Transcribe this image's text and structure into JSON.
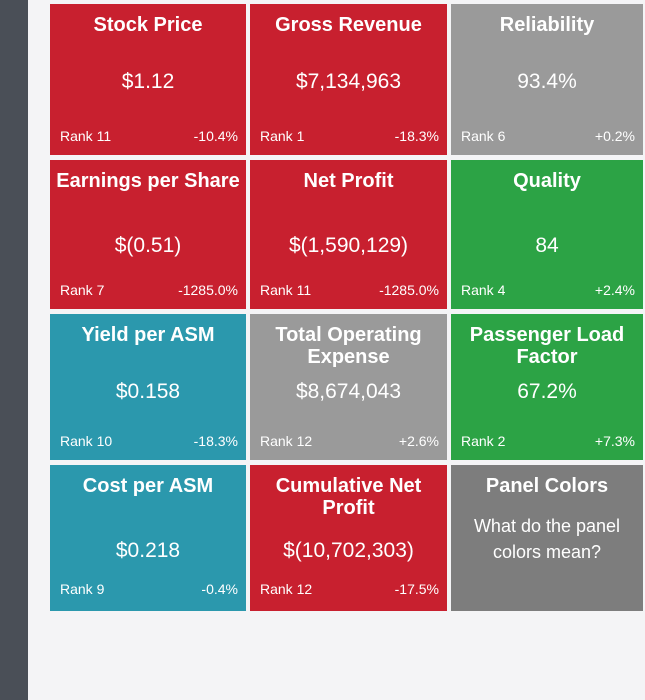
{
  "tiles": [
    {
      "id": "stock-price",
      "title": "Stock Price",
      "value": "$1.12",
      "rank": "Rank 11",
      "change": "-10.4%",
      "color": "#c8202f"
    },
    {
      "id": "gross-revenue",
      "title": "Gross Revenue",
      "value": "$7,134,963",
      "rank": "Rank 1",
      "change": "-18.3%",
      "color": "#c8202f"
    },
    {
      "id": "reliability",
      "title": "Reliability",
      "value": "93.4%",
      "rank": "Rank 6",
      "change": "+0.2%",
      "color": "#9a9a9a"
    },
    {
      "id": "earnings-per-share",
      "title": "Earnings per Share",
      "value": "$(0.51)",
      "rank": "Rank 7",
      "change": "-1285.0%",
      "color": "#c8202f"
    },
    {
      "id": "net-profit",
      "title": "Net Profit",
      "value": "$(1,590,129)",
      "rank": "Rank 11",
      "change": "-1285.0%",
      "color": "#c8202f"
    },
    {
      "id": "quality",
      "title": "Quality",
      "value": "84",
      "rank": "Rank 4",
      "change": "+2.4%",
      "color": "#2ca345"
    },
    {
      "id": "yield-per-asm",
      "title": "Yield per ASM",
      "value": "$0.158",
      "rank": "Rank 10",
      "change": "-18.3%",
      "color": "#2b98ad"
    },
    {
      "id": "total-operating-expense",
      "title": "Total Operating Expense",
      "value": "$8,674,043",
      "rank": "Rank 12",
      "change": "+2.6%",
      "color": "#9a9a9a"
    },
    {
      "id": "passenger-load-factor",
      "title": "Passenger Load Factor",
      "value": "67.2%",
      "rank": "Rank 2",
      "change": "+7.3%",
      "color": "#2ca345"
    },
    {
      "id": "cost-per-asm",
      "title": "Cost per ASM",
      "value": "$0.218",
      "rank": "Rank 9",
      "change": "-0.4%",
      "color": "#2b98ad"
    },
    {
      "id": "cumulative-net-profit",
      "title": "Cumulative Net Profit",
      "value": "$(10,702,303)",
      "rank": "Rank 12",
      "change": "-17.5%",
      "color": "#c8202f"
    }
  ],
  "panel_colors": {
    "title": "Panel Colors",
    "question": "What do the panel colors mean?",
    "color": "#7d7d7d"
  }
}
